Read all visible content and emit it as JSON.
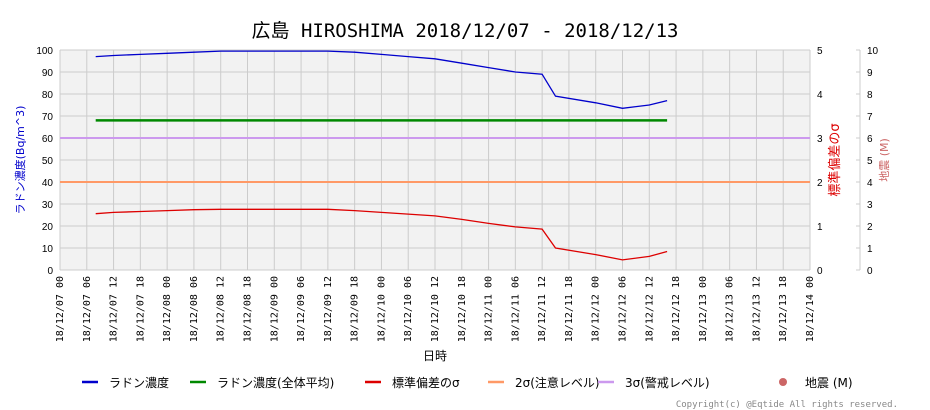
{
  "title": "広島 HIROSHIMA 2018/12/07 - 2018/12/13",
  "copyright": "Copyright(c) @Eqtide All rights reserved.",
  "colors": {
    "radon": "#0000cc",
    "radon_avg": "#008800",
    "sigma": "#dd0000",
    "two_sigma": "#ff9966",
    "three_sigma": "#cc99ee",
    "quake": "#cc6666",
    "grid": "#cccccc",
    "plot_bg": "#f2f2f2",
    "left_axis_label": "#0000cc",
    "sigma_axis_label": "#dd0000",
    "quake_axis_label": "#cc6666"
  },
  "chart_data": {
    "type": "line",
    "title": "広島 HIROSHIMA 2018/12/07 - 2018/12/13",
    "xlabel": "日時",
    "ylabel": "ラドン濃度(Bq/m^3)",
    "y2label": "標準偏差のσ",
    "y3label": "地震 (M)",
    "ylim": [
      0,
      100
    ],
    "y2lim": [
      0,
      5
    ],
    "y3lim": [
      0,
      10
    ],
    "yticks": [
      "0",
      "10",
      "20",
      "30",
      "40",
      "50",
      "60",
      "70",
      "80",
      "90",
      "100"
    ],
    "y2ticks": [
      "0",
      "1",
      "2",
      "3",
      "4",
      "5"
    ],
    "y3ticks": [
      "0",
      "1",
      "2",
      "3",
      "4",
      "5",
      "6",
      "7",
      "8",
      "9",
      "10"
    ],
    "grid": true,
    "legend_position": "bottom",
    "x_ticks": [
      "18/12/07 00",
      "18/12/07 06",
      "18/12/07 12",
      "18/12/07 18",
      "18/12/08 00",
      "18/12/08 06",
      "18/12/08 12",
      "18/12/08 18",
      "18/12/09 00",
      "18/12/09 06",
      "18/12/09 12",
      "18/12/09 18",
      "18/12/10 00",
      "18/12/10 06",
      "18/12/10 12",
      "18/12/10 18",
      "18/12/11 00",
      "18/12/11 06",
      "18/12/11 12",
      "18/12/11 18",
      "18/12/12 00",
      "18/12/12 06",
      "18/12/12 12",
      "18/12/12 18",
      "18/12/13 00",
      "18/12/13 06",
      "18/12/13 12",
      "18/12/13 18",
      "18/12/14 00"
    ],
    "x_hours": [
      8,
      12,
      18,
      24,
      30,
      36,
      42,
      48,
      54,
      60,
      66,
      72,
      78,
      84,
      90,
      96,
      102,
      108,
      111,
      120,
      126,
      132,
      136
    ],
    "series": [
      {
        "name": "ラドン濃度",
        "axis": "left",
        "color": "#0000cc",
        "values": [
          97,
          97.5,
          98,
          98.5,
          99,
          99.5,
          99.5,
          99.5,
          99.5,
          99.5,
          99,
          98,
          97,
          96,
          94,
          92,
          90,
          89,
          79,
          76,
          73.5,
          75,
          77
        ]
      },
      {
        "name": "ラドン濃度(全体平均)",
        "axis": "left",
        "color": "#008800",
        "values": [
          68,
          68,
          68,
          68,
          68,
          68,
          68,
          68,
          68,
          68,
          68,
          68,
          68,
          68,
          68,
          68,
          68,
          68,
          68,
          68,
          68,
          68,
          68
        ]
      },
      {
        "name": "標準偏差のσ",
        "axis": "right",
        "color": "#dd0000",
        "values": [
          1.28,
          1.31,
          1.33,
          1.35,
          1.37,
          1.38,
          1.38,
          1.38,
          1.38,
          1.38,
          1.35,
          1.31,
          1.27,
          1.23,
          1.15,
          1.06,
          0.98,
          0.93,
          0.5,
          0.35,
          0.23,
          0.31,
          0.42
        ]
      },
      {
        "name": "2σ(注意レベル)",
        "axis": "right",
        "color": "#ff9966",
        "constant": 2
      },
      {
        "name": "3σ(警戒レベル)",
        "axis": "right",
        "color": "#cc99ee",
        "constant": 3
      },
      {
        "name": "地震 (M)",
        "axis": "right2",
        "color": "#cc6666",
        "values": []
      }
    ]
  },
  "legend": [
    {
      "label": "ラドン濃度",
      "type": "line",
      "color": "#0000cc"
    },
    {
      "label": "ラドン濃度(全体平均)",
      "type": "line",
      "color": "#008800"
    },
    {
      "label": "標準偏差のσ",
      "type": "line",
      "color": "#dd0000"
    },
    {
      "label": "2σ(注意レベル)",
      "type": "line",
      "color": "#ff9966"
    },
    {
      "label": "3σ(警戒レベル)",
      "type": "line",
      "color": "#cc99ee"
    },
    {
      "label": "地震 (M)",
      "type": "dot",
      "color": "#cc6666"
    }
  ]
}
